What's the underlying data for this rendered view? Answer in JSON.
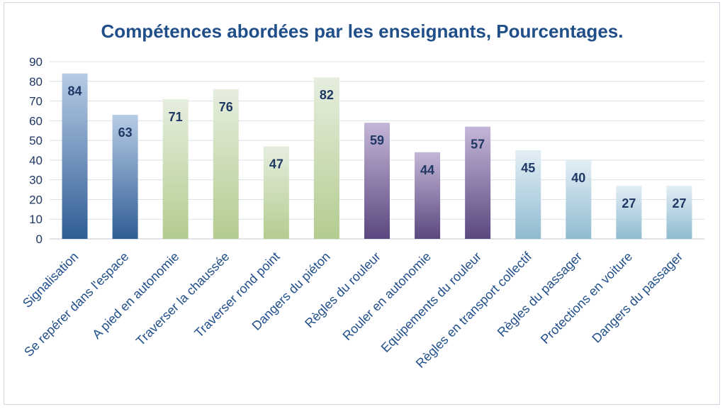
{
  "chart_data": {
    "type": "bar",
    "title": "Compétences abordées par les enseignants, Pourcentages.",
    "xlabel": "",
    "ylabel": "",
    "ylim": [
      0,
      90
    ],
    "yticks": [
      0,
      10,
      20,
      30,
      40,
      50,
      60,
      70,
      80,
      90
    ],
    "grid": true,
    "legend": "none",
    "categories": [
      "Signalisation",
      "Se repérer dans l'espace",
      "A pied en autonomie",
      "Traverser la chaussée",
      "Traverser rond point",
      "Dangers du piéton",
      "Règles du rouleur",
      "Rouler en autonomie",
      "Equipements du rouleur",
      "Règles en transport collectif",
      "Règles du passager",
      "Protections en voiture",
      "Dangers du passager"
    ],
    "values": [
      84,
      63,
      71,
      76,
      47,
      82,
      59,
      44,
      57,
      45,
      40,
      27,
      27
    ],
    "data_labels": [
      "84",
      "63",
      "71",
      "76",
      "47",
      "82",
      "59",
      "44",
      "57",
      "45",
      "40",
      "27",
      "27"
    ],
    "colors": {
      "blue": [
        "#b7cce6",
        "#2f5d94"
      ],
      "green": [
        "#e6eedf",
        "#b3cc8f"
      ],
      "purple": [
        "#c4b6d8",
        "#5b477f"
      ],
      "lightblue": [
        "#e3eef5",
        "#8fbbd0"
      ],
      "grid": "#d9e1ea",
      "axis": "#c0c8d2"
    },
    "bar_color_groups": [
      "blue",
      "blue",
      "green",
      "green",
      "green",
      "green",
      "purple",
      "purple",
      "purple",
      "lightblue",
      "lightblue",
      "lightblue",
      "lightblue"
    ]
  }
}
